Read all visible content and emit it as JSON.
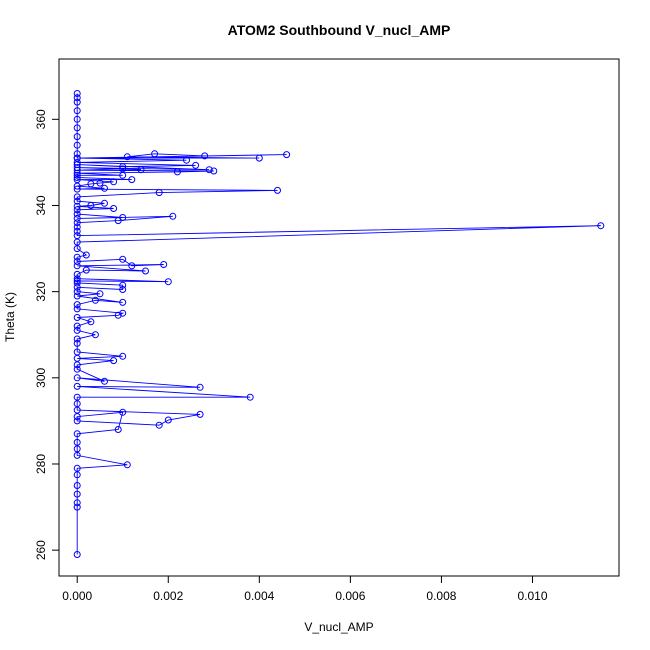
{
  "chart_data": {
    "type": "line",
    "title": "ATOM2 Southbound V_nucl_AMP",
    "xlabel": "V_nucl_AMP",
    "ylabel": "Theta (K)",
    "xlim": [
      -0.0004,
      0.0119
    ],
    "ylim": [
      254,
      374
    ],
    "xticks": [
      0.0,
      0.002,
      0.004,
      0.006,
      0.008,
      0.01
    ],
    "xtick_labels": [
      "0.000",
      "0.002",
      "0.004",
      "0.006",
      "0.008",
      "0.010"
    ],
    "yticks": [
      260,
      280,
      300,
      320,
      340,
      360
    ],
    "ytick_labels": [
      "260",
      "280",
      "300",
      "320",
      "340",
      "360"
    ],
    "grid": false,
    "legend": "none",
    "marker": "open-circle",
    "colors": {
      "series": "#0000ff",
      "axes": "#000000",
      "background": "#ffffff"
    },
    "series": [
      {
        "points": [
          [
            0.0,
            259.0
          ],
          [
            0.0,
            270.0
          ],
          [
            0.0,
            271.0
          ],
          [
            0.0,
            273.0
          ],
          [
            0.0,
            275.0
          ],
          [
            0.0,
            277.5
          ],
          [
            0.0,
            279.0
          ],
          [
            0.0011,
            279.8
          ],
          [
            0.0,
            282.0
          ],
          [
            0.0,
            283.5
          ],
          [
            0.0,
            285.0
          ],
          [
            0.0,
            287.0
          ],
          [
            0.0009,
            288.0
          ],
          [
            0.001,
            292.0
          ],
          [
            0.0,
            291.0
          ],
          [
            0.0,
            290.0
          ],
          [
            0.0018,
            289.0
          ],
          [
            0.002,
            290.2
          ],
          [
            0.0027,
            291.5
          ],
          [
            0.0,
            292.5
          ],
          [
            0.0,
            294.0
          ],
          [
            0.0,
            295.5
          ],
          [
            0.0038,
            295.5
          ],
          [
            0.0,
            298.0
          ],
          [
            0.0027,
            297.8
          ],
          [
            0.0,
            300.0
          ],
          [
            0.0006,
            299.2
          ],
          [
            0.0,
            302.0
          ],
          [
            0.0,
            303.0
          ],
          [
            0.0008,
            304.0
          ],
          [
            0.0,
            304.5
          ],
          [
            0.001,
            305.0
          ],
          [
            0.0,
            306.0
          ],
          [
            0.0,
            308.0
          ],
          [
            0.0,
            309.0
          ],
          [
            0.0004,
            310.0
          ],
          [
            0.0,
            311.0
          ],
          [
            0.0,
            312.0
          ],
          [
            0.0003,
            313.0
          ],
          [
            0.0,
            314.0
          ],
          [
            0.0009,
            314.5
          ],
          [
            0.001,
            315.0
          ],
          [
            0.0,
            316.0
          ],
          [
            0.0,
            317.0
          ],
          [
            0.0004,
            318.0
          ],
          [
            0.001,
            317.5
          ],
          [
            0.0,
            319.0
          ],
          [
            0.0005,
            319.5
          ],
          [
            0.0,
            320.0
          ],
          [
            0.0,
            321.0
          ],
          [
            0.001,
            320.5
          ],
          [
            0.001,
            321.5
          ],
          [
            0.0,
            322.0
          ],
          [
            0.0,
            322.5
          ],
          [
            0.002,
            322.3
          ],
          [
            0.0,
            323.0
          ],
          [
            0.0,
            324.0
          ],
          [
            0.0002,
            325.0
          ],
          [
            0.0015,
            324.8
          ],
          [
            0.0,
            326.0
          ],
          [
            0.0019,
            326.3
          ],
          [
            0.0012,
            326.0
          ],
          [
            0.001,
            327.5
          ],
          [
            0.0,
            327.0
          ],
          [
            0.0,
            328.0
          ],
          [
            0.0002,
            328.5
          ],
          [
            0.0,
            330.0
          ],
          [
            0.0,
            331.5
          ],
          [
            0.0115,
            335.3
          ],
          [
            0.0,
            333.0
          ],
          [
            0.0,
            334.0
          ],
          [
            0.0,
            335.0
          ],
          [
            0.0,
            336.0
          ],
          [
            0.0009,
            336.5
          ],
          [
            0.0021,
            337.5
          ],
          [
            0.0,
            337.0
          ],
          [
            0.001,
            337.2
          ],
          [
            0.0,
            338.0
          ],
          [
            0.0,
            339.0
          ],
          [
            0.0008,
            339.3
          ],
          [
            0.0,
            339.8
          ],
          [
            0.0003,
            340.0
          ],
          [
            0.0006,
            340.5
          ],
          [
            0.0,
            341.0
          ],
          [
            0.0,
            342.0
          ],
          [
            0.0018,
            343.0
          ],
          [
            0.0044,
            343.5
          ],
          [
            0.0,
            343.8
          ],
          [
            0.0006,
            344.0
          ],
          [
            0.0,
            344.5
          ],
          [
            0.0003,
            345.0
          ],
          [
            0.0005,
            345.2
          ],
          [
            0.0008,
            345.5
          ],
          [
            0.0,
            346.0
          ],
          [
            0.0012,
            346.0
          ],
          [
            0.0,
            346.5
          ],
          [
            0.0,
            347.0
          ],
          [
            0.001,
            347.0
          ],
          [
            0.0,
            347.5
          ],
          [
            0.0022,
            347.8
          ],
          [
            0.003,
            348.0
          ],
          [
            0.0,
            348.2
          ],
          [
            0.001,
            348.5
          ],
          [
            0.0014,
            348.3
          ],
          [
            0.0,
            348.8
          ],
          [
            0.0029,
            348.3
          ],
          [
            0.0,
            349.5
          ],
          [
            0.001,
            349.0
          ],
          [
            0.0026,
            349.3
          ],
          [
            0.0,
            350.0
          ],
          [
            0.0024,
            350.5
          ],
          [
            0.0,
            351.0
          ],
          [
            0.004,
            351.0
          ],
          [
            0.0011,
            351.3
          ],
          [
            0.0017,
            352.0
          ],
          [
            0.0028,
            351.5
          ],
          [
            0.0046,
            351.8
          ],
          [
            0.0,
            351.0
          ],
          [
            0.0,
            352.0
          ],
          [
            0.0,
            354.0
          ],
          [
            0.0,
            356.0
          ],
          [
            0.0,
            358.0
          ],
          [
            0.0,
            360.0
          ],
          [
            0.0,
            362.0
          ],
          [
            0.0,
            364.0
          ],
          [
            0.0,
            365.0
          ],
          [
            0.0,
            366.0
          ]
        ]
      }
    ]
  }
}
